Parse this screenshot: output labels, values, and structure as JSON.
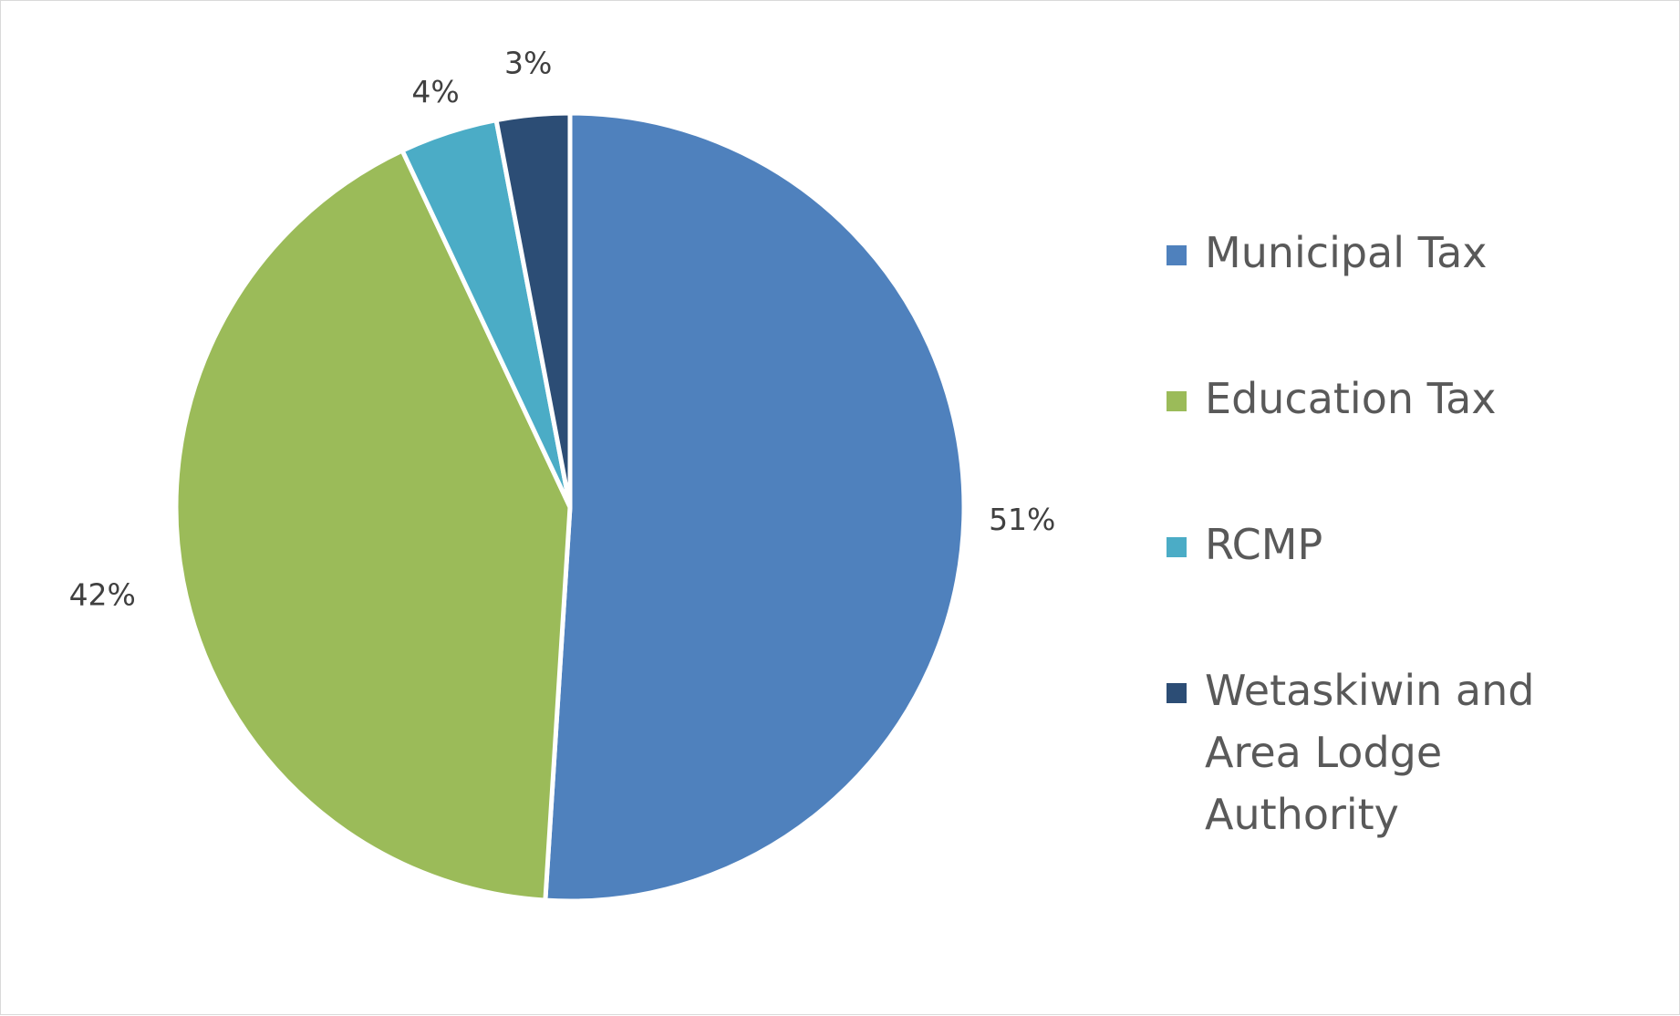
{
  "chart_data": {
    "type": "pie",
    "title": "",
    "slices": [
      {
        "label": "Municipal Tax",
        "value": 51,
        "display": "51%",
        "color": "#4f81bd"
      },
      {
        "label": "Education Tax",
        "value": 42,
        "display": "42%",
        "color": "#9bbb59"
      },
      {
        "label": "RCMP",
        "value": 4,
        "display": "4%",
        "color": "#4bacc6"
      },
      {
        "label": "Wetaskiwin and Area Lodge Authority",
        "value": 3,
        "display": "3%",
        "color": "#2c4d75"
      }
    ],
    "legend_placement": "right"
  }
}
